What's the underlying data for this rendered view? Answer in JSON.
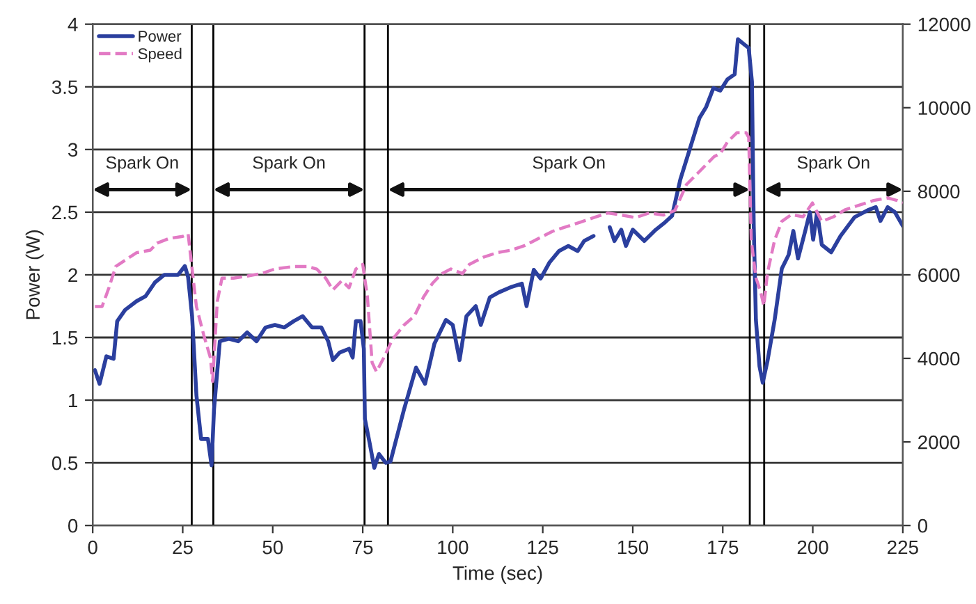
{
  "chart_data": {
    "type": "line",
    "xlabel": "Time (sec)",
    "ylabel": "Power (W)",
    "xlim": [
      0,
      225
    ],
    "xticks": [
      0,
      25,
      50,
      75,
      100,
      125,
      150,
      175,
      200,
      225
    ],
    "ylim": [
      0,
      4
    ],
    "yticks": [
      0,
      0.5,
      1,
      1.5,
      2,
      2.5,
      3,
      3.5,
      4
    ],
    "y2lim": [
      0,
      12000
    ],
    "y2ticks": [
      0,
      2000,
      4000,
      6000,
      8000,
      10000,
      12000
    ],
    "grid": "y",
    "legend": "top left",
    "series": [
      {
        "name": "Power",
        "color": "#2b3f9e",
        "line_style": "solid",
        "x": [
          0.6,
          1.9,
          3.8,
          5.8,
          6.8,
          9,
          12.2,
          14.7,
          17.3,
          19.9,
          23.7,
          25.6,
          26.5,
          27.6,
          28.8,
          30.1,
          32,
          33,
          33.7,
          35.3,
          37.8,
          40.4,
          42.9,
          45.5,
          48,
          50.6,
          53.2,
          55.8,
          58.3,
          60.9,
          63.5,
          65.4,
          66.7,
          68.6,
          71.2,
          72.2,
          73.1,
          74.4,
          75.3,
          75.6,
          76.9,
          78.2,
          79.5,
          81.4,
          82.7,
          86.5,
          89.8,
          92.3,
          94.9,
          98.1,
          100,
          101.9,
          103.8,
          106.4,
          107.8,
          110.3,
          112.8,
          116,
          119.2,
          120.5,
          122.5,
          124.4,
          126.9,
          129.5,
          132.1,
          134.7,
          136.5,
          139.1,
          141,
          143.6,
          144.9,
          146.8,
          148.1,
          150,
          153.2,
          156.4,
          159,
          160.9,
          163.2,
          165.8,
          168.5,
          170.4,
          172.4,
          174.3,
          176.3,
          178.3,
          179.2,
          180.9,
          182.2,
          183.1,
          183.6,
          184.2,
          185.2,
          186.1,
          187.4,
          189.4,
          191.4,
          193.3,
          194.6,
          195.9,
          197.9,
          199.2,
          200.1,
          201.2,
          202.5,
          205.1,
          207.7,
          211.6,
          215.6,
          217.5,
          218.8,
          220.8,
          222.8,
          225
        ],
        "values": [
          1.24,
          1.13,
          1.35,
          1.33,
          1.63,
          1.72,
          1.79,
          1.83,
          1.94,
          2.0,
          2.0,
          2.07,
          1.98,
          1.67,
          1.04,
          0.69,
          0.69,
          0.48,
          0.93,
          1.47,
          1.49,
          1.47,
          1.54,
          1.47,
          1.58,
          1.6,
          1.58,
          1.63,
          1.67,
          1.58,
          1.58,
          1.47,
          1.32,
          1.38,
          1.41,
          1.34,
          1.63,
          1.63,
          1.41,
          0.85,
          0.66,
          0.46,
          0.57,
          0.5,
          0.51,
          0.93,
          1.26,
          1.13,
          1.45,
          1.64,
          1.6,
          1.32,
          1.67,
          1.75,
          1.6,
          1.82,
          1.86,
          1.9,
          1.93,
          1.75,
          2.04,
          1.97,
          2.1,
          2.19,
          2.23,
          2.19,
          2.27,
          2.31,
          null,
          2.38,
          2.27,
          2.36,
          2.23,
          2.36,
          2.27,
          2.36,
          2.42,
          2.47,
          2.76,
          3.0,
          3.25,
          3.34,
          3.49,
          3.47,
          3.56,
          3.6,
          3.88,
          3.84,
          3.81,
          3.54,
          2.39,
          1.64,
          1.27,
          1.14,
          1.31,
          1.64,
          2.05,
          2.16,
          2.35,
          2.13,
          2.35,
          2.5,
          2.28,
          2.5,
          2.24,
          2.18,
          2.31,
          2.46,
          2.52,
          2.54,
          2.43,
          2.54,
          2.5,
          2.39
        ]
      },
      {
        "name": "Speed",
        "color": "#e27ac4",
        "line_style": "dashed",
        "axis": "y2",
        "x": [
          0.6,
          2.6,
          4.5,
          6.4,
          8.3,
          12.2,
          16,
          17.9,
          21.2,
          25,
          26.5,
          27.6,
          28.8,
          30.8,
          32.7,
          33.3,
          34.6,
          35.9,
          39.1,
          42.9,
          46.8,
          50.6,
          55.8,
          59.6,
          62.2,
          64.7,
          66.7,
          69.2,
          71.2,
          73.1,
          75,
          76.3,
          77.6,
          78.8,
          80.8,
          83.3,
          86.5,
          89.4,
          91.9,
          94.4,
          97,
          99.5,
          102.7,
          104.6,
          108.5,
          112.3,
          116.2,
          120,
          123.8,
          127.7,
          131.5,
          135.4,
          139.2,
          143.1,
          146.9,
          150.8,
          154.6,
          158.5,
          161.7,
          164.9,
          168.7,
          172.6,
          174.3,
          176.3,
          178.9,
          181.5,
          182.2,
          182.9,
          184.2,
          185.5,
          186.4,
          187.4,
          189.4,
          191.4,
          194,
          197.3,
          199.9,
          202.5,
          205.8,
          209,
          213,
          216.9,
          220.8,
          223.4,
          225
        ],
        "values": [
          5240,
          5240,
          5690,
          6200,
          6310,
          6530,
          6590,
          6760,
          6870,
          6920,
          6980,
          6140,
          5240,
          4570,
          4010,
          3450,
          5360,
          5920,
          5920,
          5970,
          6030,
          6140,
          6200,
          6200,
          6140,
          5920,
          5640,
          5860,
          5690,
          6140,
          6250,
          5470,
          3900,
          3680,
          4010,
          4460,
          4800,
          5020,
          5470,
          5800,
          6030,
          6140,
          6030,
          6250,
          6420,
          6530,
          6590,
          6700,
          6870,
          7040,
          7150,
          7260,
          7370,
          7480,
          7430,
          7370,
          7480,
          7430,
          7540,
          8160,
          8490,
          8830,
          8900,
          9180,
          9400,
          9400,
          9290,
          6830,
          5930,
          5600,
          5260,
          6040,
          6830,
          7280,
          7440,
          7390,
          7720,
          7280,
          7390,
          7560,
          7670,
          7780,
          7840,
          7780,
          7720
        ]
      }
    ],
    "ref_lines": [
      {
        "axis": "x",
        "value": 27.5,
        "color": "#000000"
      },
      {
        "axis": "x",
        "value": 33.5,
        "color": "#000000"
      },
      {
        "axis": "x",
        "value": 75.5,
        "color": "#000000"
      },
      {
        "axis": "x",
        "value": 82,
        "color": "#000000"
      },
      {
        "axis": "x",
        "value": 182.5,
        "color": "#000000"
      },
      {
        "axis": "x",
        "value": 186.5,
        "color": "#000000"
      }
    ],
    "annotations": [
      "Spark On",
      "Spark On",
      "Spark On",
      "Spark On"
    ]
  }
}
